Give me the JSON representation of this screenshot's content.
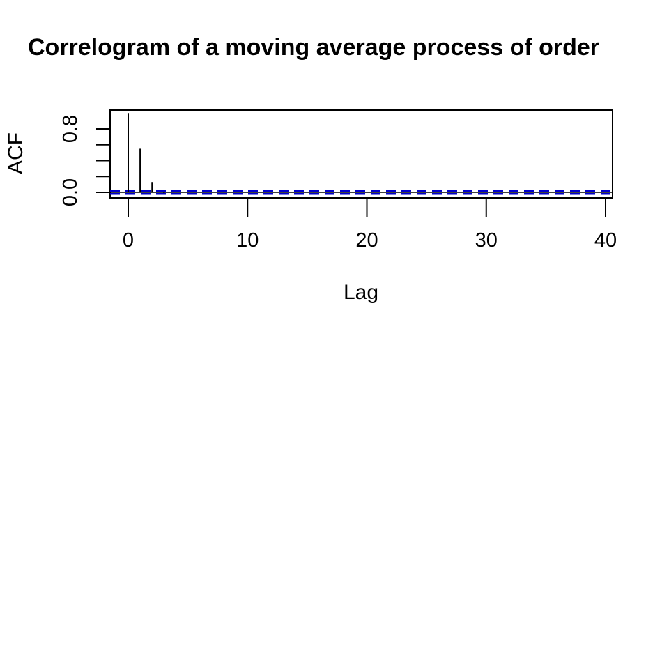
{
  "chart_data": {
    "type": "bar",
    "title": "Correlogram of a moving average process of order",
    "xlabel": "Lag",
    "ylabel": "ACF",
    "x_ticks": [
      0,
      10,
      20,
      30,
      40
    ],
    "y_ticks_labeled": [
      "0.0",
      "0.8"
    ],
    "y_ticks": [
      0,
      0.2,
      0.4,
      0.6,
      0.8
    ],
    "xlim": [
      -1.6,
      40.6
    ],
    "ylim": [
      -0.05,
      1.0
    ],
    "lags": [
      0,
      1,
      2,
      3,
      4,
      5,
      6,
      7,
      8,
      9,
      10,
      11,
      12,
      13,
      14,
      15,
      16,
      17,
      18,
      19,
      20,
      21,
      22,
      23,
      24,
      25,
      26,
      27,
      28,
      29,
      30,
      31,
      32,
      33,
      34,
      35,
      36,
      37,
      38,
      39,
      40
    ],
    "acf": [
      1.0,
      0.55,
      0.13,
      -0.01,
      0.0,
      -0.005,
      0.003,
      -0.004,
      0.002,
      0.0,
      -0.003,
      0.002,
      -0.002,
      0.001,
      0.0,
      -0.002,
      0.001,
      0.0,
      -0.001,
      0.002,
      0.0,
      -0.001,
      0.0,
      0.001,
      -0.002,
      0.0,
      0.001,
      -0.001,
      0.0,
      0.001,
      -0.001,
      0.0,
      0.0,
      0.001,
      -0.001,
      0.0,
      0.001,
      -0.001,
      0.0,
      0.0,
      0.0
    ],
    "confidence_band": 0.02,
    "band_color": "#0000cc",
    "bar_color": "#000000",
    "grid": false,
    "legend": "none"
  }
}
